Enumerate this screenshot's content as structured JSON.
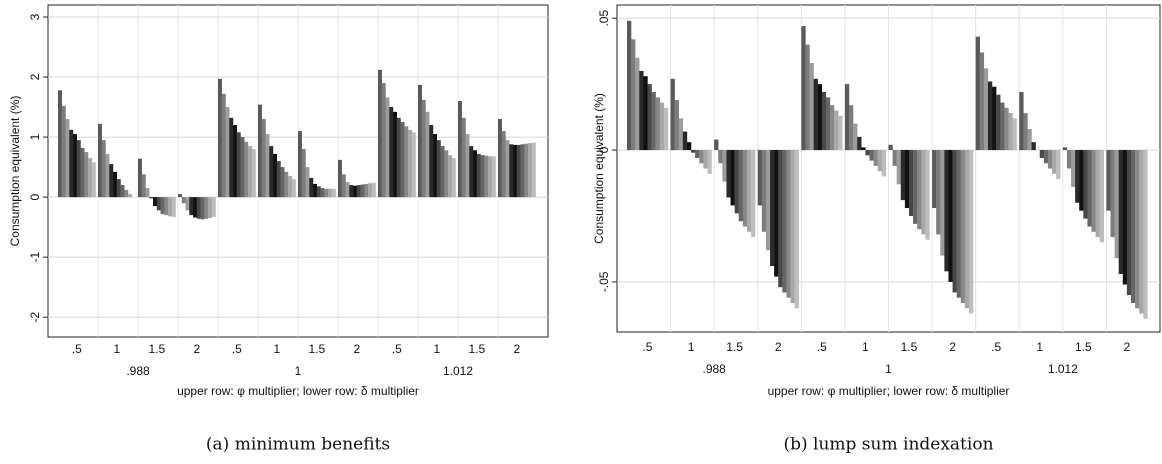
{
  "chart_data": [
    {
      "type": "bar",
      "caption": "(a) minimum benefits",
      "ylabel": "Consumption equivalent (%)",
      "xlabel": "upper row: φ multiplier; lower row: δ multiplier",
      "groups": [
        ".988",
        "1",
        "1.012"
      ],
      "subgroups": [
        ".5",
        "1",
        "1.5",
        "2"
      ],
      "colors": [
        "#5a5a5a",
        "#7c7c7c",
        "#9c9c9c",
        "#2a2a2a",
        "#111111",
        "#474747",
        "#666666",
        "#888888",
        "#a8a8a8",
        "#bdbdbd"
      ],
      "ylim": [
        -2.33,
        3.2
      ],
      "yticks": [
        -2,
        -1,
        0,
        1,
        2,
        3
      ],
      "grid": true,
      "values": [
        [
          [
            1.78,
            1.52,
            1.3,
            1.12,
            1.05,
            0.95,
            0.82,
            0.75,
            0.65,
            0.58
          ],
          [
            1.22,
            0.95,
            0.72,
            0.55,
            0.42,
            0.3,
            0.2,
            0.12,
            0.05,
            0.0
          ],
          [
            0.64,
            0.38,
            0.15,
            -0.02,
            -0.15,
            -0.22,
            -0.28,
            -0.3,
            -0.32,
            -0.33
          ],
          [
            0.05,
            -0.1,
            -0.22,
            -0.3,
            -0.34,
            -0.36,
            -0.37,
            -0.36,
            -0.35,
            -0.33
          ]
        ],
        [
          [
            1.97,
            1.72,
            1.5,
            1.32,
            1.2,
            1.08,
            1.0,
            0.92,
            0.85,
            0.8
          ],
          [
            1.54,
            1.3,
            1.05,
            0.85,
            0.72,
            0.6,
            0.5,
            0.42,
            0.35,
            0.3
          ],
          [
            1.1,
            0.8,
            0.5,
            0.32,
            0.22,
            0.18,
            0.15,
            0.14,
            0.14,
            0.14
          ],
          [
            0.62,
            0.38,
            0.25,
            0.2,
            0.19,
            0.2,
            0.21,
            0.22,
            0.23,
            0.24
          ]
        ],
        [
          [
            2.12,
            1.9,
            1.66,
            1.5,
            1.42,
            1.32,
            1.25,
            1.18,
            1.12,
            1.08
          ],
          [
            1.87,
            1.62,
            1.42,
            1.2,
            1.05,
            0.95,
            0.85,
            0.78,
            0.7,
            0.65
          ],
          [
            1.6,
            1.32,
            1.05,
            0.85,
            0.78,
            0.72,
            0.7,
            0.69,
            0.68,
            0.68
          ],
          [
            1.3,
            1.1,
            0.95,
            0.88,
            0.87,
            0.87,
            0.88,
            0.89,
            0.9,
            0.91
          ]
        ]
      ]
    },
    {
      "type": "bar",
      "caption": "(b) lump sum indexation",
      "ylabel": "Consumption equivalent (%)",
      "xlabel": "upper row: φ multiplier; lower row: δ multiplier",
      "groups": [
        ".988",
        "1",
        "1.012"
      ],
      "subgroups": [
        ".5",
        "1",
        "1.5",
        "2"
      ],
      "colors": [
        "#5a5a5a",
        "#7c7c7c",
        "#9c9c9c",
        "#2a2a2a",
        "#111111",
        "#474747",
        "#666666",
        "#888888",
        "#a8a8a8",
        "#bdbdbd"
      ],
      "ylim": [
        -0.069,
        0.055
      ],
      "yticks": [
        {
          "value": -0.05,
          "label": "-.05"
        },
        0,
        {
          "value": 0.05,
          "label": ".05"
        }
      ],
      "grid": true,
      "values": [
        [
          [
            0.049,
            0.042,
            0.035,
            0.03,
            0.028,
            0.025,
            0.022,
            0.02,
            0.018,
            0.016
          ],
          [
            0.027,
            0.019,
            0.012,
            0.007,
            0.003,
            -0.001,
            -0.003,
            -0.005,
            -0.007,
            -0.009
          ],
          [
            0.004,
            -0.005,
            -0.012,
            -0.018,
            -0.021,
            -0.024,
            -0.027,
            -0.029,
            -0.031,
            -0.033
          ],
          [
            -0.021,
            -0.031,
            -0.038,
            -0.044,
            -0.048,
            -0.052,
            -0.054,
            -0.056,
            -0.058,
            -0.06
          ]
        ],
        [
          [
            0.047,
            0.04,
            0.033,
            0.027,
            0.025,
            0.022,
            0.02,
            0.017,
            0.015,
            0.013
          ],
          [
            0.025,
            0.017,
            0.01,
            0.005,
            0.001,
            -0.002,
            -0.004,
            -0.006,
            -0.008,
            -0.01
          ],
          [
            0.002,
            -0.006,
            -0.013,
            -0.019,
            -0.022,
            -0.025,
            -0.028,
            -0.03,
            -0.032,
            -0.034
          ],
          [
            -0.022,
            -0.032,
            -0.04,
            -0.046,
            -0.05,
            -0.054,
            -0.056,
            -0.058,
            -0.06,
            -0.062
          ]
        ],
        [
          [
            0.043,
            0.037,
            0.031,
            0.026,
            0.024,
            0.021,
            0.018,
            0.016,
            0.014,
            0.012
          ],
          [
            0.022,
            0.014,
            0.008,
            0.003,
            0,
            -0.003,
            -0.005,
            -0.007,
            -0.009,
            -0.011
          ],
          [
            0.001,
            -0.007,
            -0.014,
            -0.02,
            -0.023,
            -0.026,
            -0.029,
            -0.031,
            -0.033,
            -0.035
          ],
          [
            -0.023,
            -0.033,
            -0.041,
            -0.047,
            -0.051,
            -0.055,
            -0.058,
            -0.06,
            -0.062,
            -0.064
          ]
        ]
      ]
    }
  ]
}
